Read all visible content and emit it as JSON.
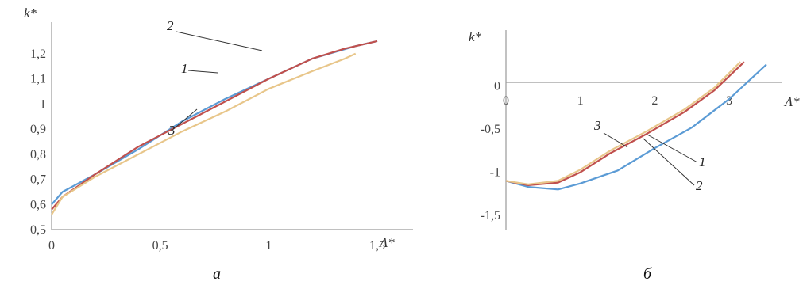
{
  "chart_data": [
    {
      "type": "line",
      "panel_label": "а",
      "xlabel": "Λ*",
      "ylabel": "k*",
      "xlim": [
        0,
        1.5
      ],
      "ylim": [
        0.5,
        1.3
      ],
      "x_ticks": [
        "0",
        "0,5",
        "1",
        "1,5"
      ],
      "y_ticks": [
        "0,5",
        "0,6",
        "0,7",
        "0,8",
        "0,9",
        "1",
        "1,1",
        "1,2"
      ],
      "grid": false,
      "colors": {
        "1": "#5b9bd5",
        "2": "#c0504d",
        "3": "#e8c68a"
      },
      "series": [
        {
          "name": "1",
          "x": [
            0,
            0.05,
            0.2,
            0.4,
            0.6,
            0.8,
            1.0,
            1.2,
            1.4,
            1.5
          ],
          "y": [
            0.6,
            0.65,
            0.72,
            0.82,
            0.93,
            1.02,
            1.1,
            1.18,
            1.23,
            1.25
          ]
        },
        {
          "name": "2",
          "x": [
            0,
            0.05,
            0.2,
            0.4,
            0.6,
            0.8,
            1.0,
            1.2,
            1.35,
            1.5
          ],
          "y": [
            0.58,
            0.63,
            0.72,
            0.83,
            0.92,
            1.01,
            1.1,
            1.18,
            1.22,
            1.25
          ]
        },
        {
          "name": "3",
          "x": [
            0,
            0.05,
            0.2,
            0.4,
            0.6,
            0.8,
            1.0,
            1.2,
            1.35,
            1.4
          ],
          "y": [
            0.56,
            0.63,
            0.71,
            0.8,
            0.89,
            0.97,
            1.06,
            1.13,
            1.18,
            1.2
          ]
        }
      ]
    },
    {
      "type": "line",
      "panel_label": "б",
      "xlabel": "Λ*",
      "ylabel": "k*",
      "xlim": [
        0,
        3.5
      ],
      "ylim": [
        -1.5,
        0.3
      ],
      "x_ticks": [
        "0",
        "1",
        "2",
        "3"
      ],
      "y_ticks": [
        "0",
        "-0,5",
        "-1",
        "-1,5"
      ],
      "grid": false,
      "colors": {
        "1": "#5b9bd5",
        "2": "#c0504d",
        "3": "#e8c68a"
      },
      "series": [
        {
          "name": "1",
          "x": [
            0,
            0.3,
            0.7,
            1.0,
            1.5,
            2.0,
            2.5,
            3.0,
            3.5
          ],
          "y": [
            -1.1,
            -1.17,
            -1.2,
            -1.13,
            -0.98,
            -0.72,
            -0.48,
            -0.15,
            0.25
          ]
        },
        {
          "name": "2",
          "x": [
            0,
            0.3,
            0.7,
            1.0,
            1.4,
            1.9,
            2.4,
            2.8,
            3.2
          ],
          "y": [
            -1.1,
            -1.15,
            -1.12,
            -1.0,
            -0.78,
            -0.55,
            -0.3,
            -0.05,
            0.28
          ]
        },
        {
          "name": "3",
          "x": [
            0,
            0.3,
            0.7,
            1.0,
            1.4,
            1.9,
            2.4,
            2.8,
            3.15
          ],
          "y": [
            -1.1,
            -1.14,
            -1.1,
            -0.97,
            -0.75,
            -0.52,
            -0.27,
            -0.02,
            0.28
          ]
        }
      ]
    }
  ]
}
